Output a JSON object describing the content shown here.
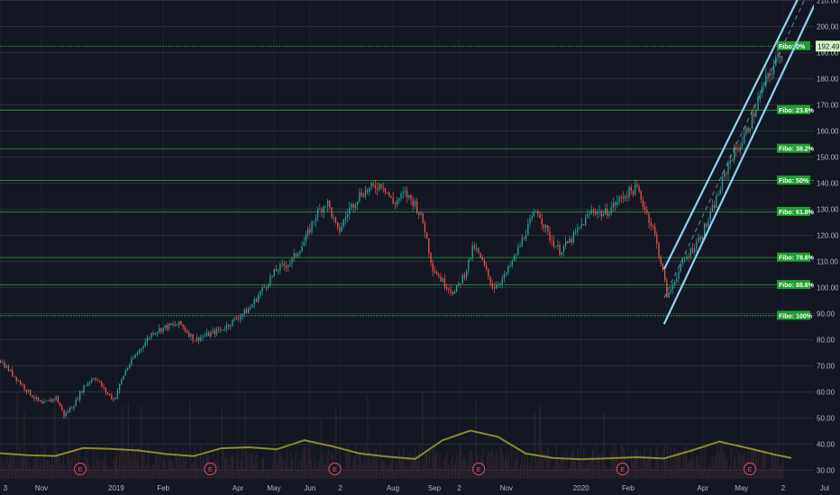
{
  "chart_data": {
    "type": "candlestick",
    "title": "",
    "ylim": [
      28,
      212
    ],
    "y_axis_ticks": [
      30,
      40,
      50,
      60,
      70,
      80,
      90,
      100,
      110,
      120,
      130,
      140,
      150,
      160,
      170,
      180,
      190,
      200,
      210
    ],
    "y_tick_labels": [
      "30.00",
      "40.00",
      "50.00",
      "60.00",
      "70.00",
      "80.00",
      "90.00",
      "100.00",
      "110.00",
      "120.00",
      "130.00",
      "140.00",
      "150.00",
      "160.00",
      "170.00",
      "180.00",
      "190.00",
      "200.00",
      "210.00"
    ],
    "x_tick_labels": [
      "3",
      "Nov",
      "2019",
      "Feb",
      "Apr",
      "May",
      "Jun",
      "2",
      "Aug",
      "Sep",
      "2",
      "Nov",
      "2020",
      "Feb",
      "Apr",
      "May",
      "2",
      "Jul"
    ],
    "x_tick_positions": [
      0.0,
      1.5,
      4.2,
      5.9,
      8.6,
      9.9,
      11.2,
      12.3,
      14.2,
      15.7,
      16.6,
      18.3,
      21.0,
      22.7,
      25.4,
      26.8,
      28.3,
      29.8
    ],
    "price_label": "192.49",
    "last_price": 192.49,
    "fibonacci_levels": [
      {
        "label": "Fibo:   0%",
        "value": 192.49
      },
      {
        "label": "Fibo: 23.6%",
        "value": 168.0
      },
      {
        "label": "Fibo: 38.2%",
        "value": 153.2
      },
      {
        "label": "Fibo:   50%",
        "value": 141.0
      },
      {
        "label": "Fibo: 61.8%",
        "value": 129.0
      },
      {
        "label": "Fibo: 78.6%",
        "value": 111.5
      },
      {
        "label": "Fibo: 88.6%",
        "value": 101.0
      },
      {
        "label": "Fibo: 100%",
        "value": 89.2
      }
    ],
    "price_path_months": [
      [
        0.0,
        72
      ],
      [
        0.5,
        66
      ],
      [
        1.0,
        60
      ],
      [
        1.5,
        55
      ],
      [
        2.0,
        58
      ],
      [
        2.3,
        51
      ],
      [
        2.7,
        56
      ],
      [
        3.0,
        62
      ],
      [
        3.4,
        66
      ],
      [
        3.8,
        60
      ],
      [
        4.1,
        57
      ],
      [
        4.5,
        68
      ],
      [
        5.0,
        76
      ],
      [
        5.5,
        83
      ],
      [
        6.0,
        85
      ],
      [
        6.5,
        86
      ],
      [
        7.0,
        80
      ],
      [
        7.5,
        82
      ],
      [
        8.0,
        84
      ],
      [
        8.5,
        88
      ],
      [
        9.0,
        92
      ],
      [
        9.5,
        100
      ],
      [
        10.0,
        107
      ],
      [
        10.5,
        110
      ],
      [
        11.0,
        118
      ],
      [
        11.4,
        128
      ],
      [
        11.8,
        133
      ],
      [
        12.2,
        121
      ],
      [
        12.6,
        130
      ],
      [
        13.0,
        136
      ],
      [
        13.4,
        138
      ],
      [
        13.8,
        140
      ],
      [
        14.2,
        132
      ],
      [
        14.6,
        136
      ],
      [
        15.0,
        132
      ],
      [
        15.3,
        124
      ],
      [
        15.6,
        108
      ],
      [
        16.0,
        102
      ],
      [
        16.4,
        98
      ],
      [
        16.8,
        106
      ],
      [
        17.1,
        116
      ],
      [
        17.4,
        110
      ],
      [
        17.8,
        100
      ],
      [
        18.2,
        104
      ],
      [
        18.6,
        112
      ],
      [
        19.0,
        122
      ],
      [
        19.4,
        130
      ],
      [
        19.8,
        120
      ],
      [
        20.2,
        114
      ],
      [
        20.6,
        118
      ],
      [
        21.0,
        124
      ],
      [
        21.4,
        130
      ],
      [
        21.8,
        128
      ],
      [
        22.2,
        132
      ],
      [
        22.6,
        136
      ],
      [
        23.0,
        138
      ],
      [
        23.3,
        130
      ],
      [
        23.6,
        122
      ],
      [
        23.9,
        108
      ],
      [
        24.1,
        96
      ],
      [
        24.4,
        104
      ],
      [
        24.8,
        112
      ],
      [
        25.2,
        118
      ],
      [
        25.6,
        126
      ],
      [
        26.0,
        138
      ],
      [
        26.4,
        150
      ],
      [
        26.8,
        156
      ],
      [
        27.2,
        166
      ],
      [
        27.6,
        178
      ],
      [
        28.0,
        186
      ],
      [
        28.3,
        192.49
      ]
    ],
    "channel_lines": [
      {
        "name": "upper",
        "from": [
          24.0,
          107
        ],
        "to": [
          28.9,
          212
        ],
        "style": "solid"
      },
      {
        "name": "lower",
        "from": [
          24.0,
          86
        ],
        "to": [
          29.6,
          212
        ],
        "style": "solid"
      },
      {
        "name": "mid",
        "from": [
          24.0,
          96
        ],
        "to": [
          29.6,
          222
        ],
        "style": "dashed"
      }
    ],
    "indicator_line": [
      [
        0.0,
        36.5
      ],
      [
        1.0,
        35.8
      ],
      [
        2.0,
        35.5
      ],
      [
        3.0,
        38.5
      ],
      [
        4.0,
        38.2
      ],
      [
        5.0,
        37.6
      ],
      [
        6.0,
        36.2
      ],
      [
        7.0,
        35.4
      ],
      [
        8.0,
        38.4
      ],
      [
        9.0,
        38.8
      ],
      [
        10.0,
        38.0
      ],
      [
        11.0,
        41.5
      ],
      [
        12.0,
        39.2
      ],
      [
        13.0,
        36.4
      ],
      [
        14.0,
        35.2
      ],
      [
        15.0,
        34.3
      ],
      [
        16.0,
        41.5
      ],
      [
        17.0,
        45.2
      ],
      [
        18.0,
        42.8
      ],
      [
        19.0,
        36.4
      ],
      [
        20.0,
        34.7
      ],
      [
        21.0,
        34.2
      ],
      [
        22.0,
        34.6
      ],
      [
        23.0,
        35.0
      ],
      [
        24.0,
        34.5
      ],
      [
        25.0,
        37.6
      ],
      [
        26.0,
        41.0
      ],
      [
        27.0,
        38.6
      ],
      [
        28.0,
        36.0
      ],
      [
        28.6,
        34.7
      ]
    ],
    "earnings_markers": [
      {
        "x": 2.9,
        "label": "E"
      },
      {
        "x": 7.6,
        "label": "E"
      },
      {
        "x": 12.1,
        "label": "E"
      },
      {
        "x": 17.3,
        "label": "E"
      },
      {
        "x": 22.5,
        "label": "E"
      },
      {
        "x": 27.1,
        "label": "E"
      },
      {
        "x": 31.7,
        "label": "E"
      }
    ]
  },
  "colors": {
    "background": "#131722",
    "grid": "#2a2e39",
    "up": "#26a69a",
    "down": "#ef5350",
    "fib_line": "#2e9e3a",
    "fib_label_bg": "#1e9e2e",
    "channel": "#8fd3ee",
    "indicator": "#8c8b2a",
    "axis_text": "#b2b5be",
    "price_tag": "#d8f5c8",
    "earnings": "#e04f5f",
    "volume": "#3a2832"
  }
}
